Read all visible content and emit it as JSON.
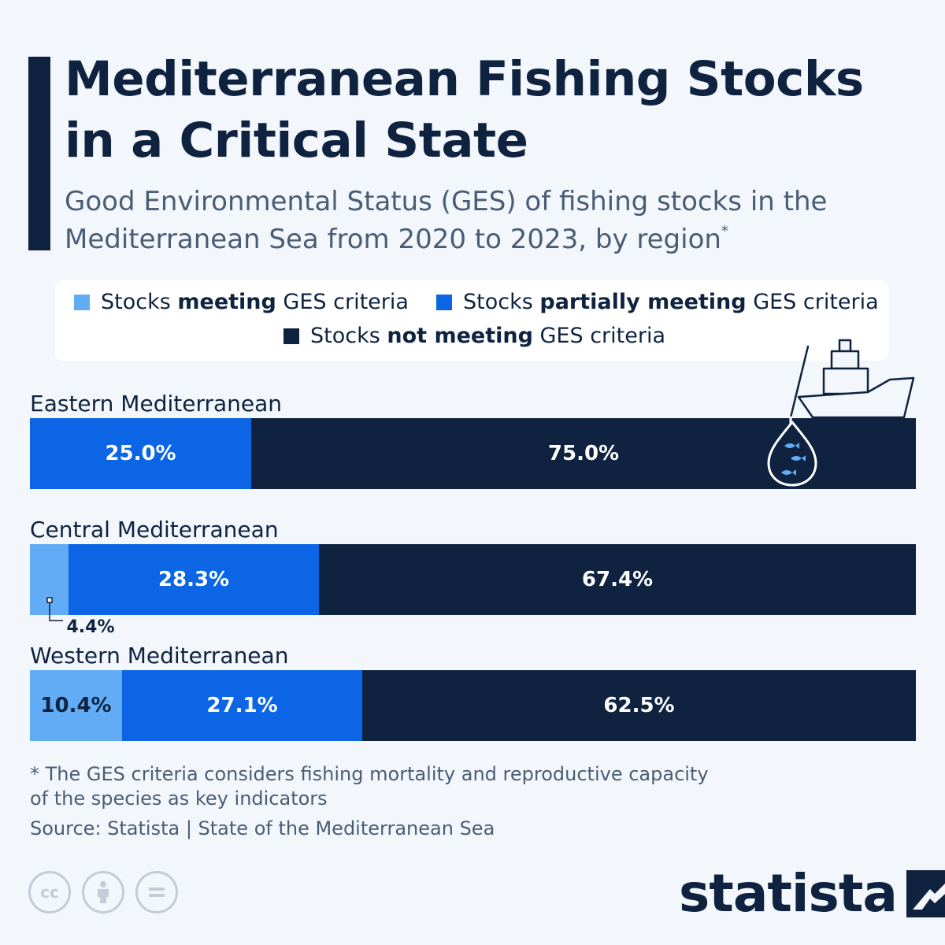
{
  "title": "Mediterranean Fishing Stocks in a Critical State",
  "subtitle": "Good Environmental Status (GES) of fishing stocks in the Mediterranean Sea from 2020 to 2023, by region",
  "subtitle_marker": "*",
  "colors": {
    "meeting": "#62abf5",
    "partial": "#0b65e4",
    "not_meeting": "#0f2340",
    "background": "#f3f7fc"
  },
  "legend": {
    "meeting": {
      "pre": "Stocks ",
      "bold": "meeting",
      "post": " GES criteria"
    },
    "partial": {
      "pre": "Stocks ",
      "bold": "partially meeting",
      "post": " GES criteria"
    },
    "not_meeting": {
      "pre": "Stocks ",
      "bold": "not meeting",
      "post": " GES criteria"
    }
  },
  "chart_data": {
    "type": "bar",
    "orientation": "horizontal",
    "stacked": true,
    "normalized": true,
    "categories": [
      "Eastern Mediterranean",
      "Central Mediterranean",
      "Western Mediterranean"
    ],
    "series": [
      {
        "name": "Stocks meeting GES criteria",
        "values": [
          0,
          4.4,
          10.4
        ],
        "labels": [
          "",
          "4.4%",
          "10.4%"
        ]
      },
      {
        "name": "Stocks partially meeting GES criteria",
        "values": [
          25.0,
          28.3,
          27.1
        ],
        "labels": [
          "25.0%",
          "28.3%",
          "27.1%"
        ]
      },
      {
        "name": "Stocks not meeting GES criteria",
        "values": [
          75.0,
          67.4,
          62.5
        ],
        "labels": [
          "75.0%",
          "67.4%",
          "62.5%"
        ]
      }
    ],
    "unit": "%",
    "xlim": [
      0,
      100
    ],
    "legend_position": "top"
  },
  "footnote": "* The GES criteria considers fishing mortality and reproductive capacity\n   of the species as key indicators",
  "source": "Source: Statista | State of the Mediterranean Sea",
  "icons": [
    "creative-commons-icon",
    "attribution-icon",
    "no-derivatives-icon",
    "fishing-boat-icon",
    "statista-logo-icon"
  ],
  "logo": "statista"
}
